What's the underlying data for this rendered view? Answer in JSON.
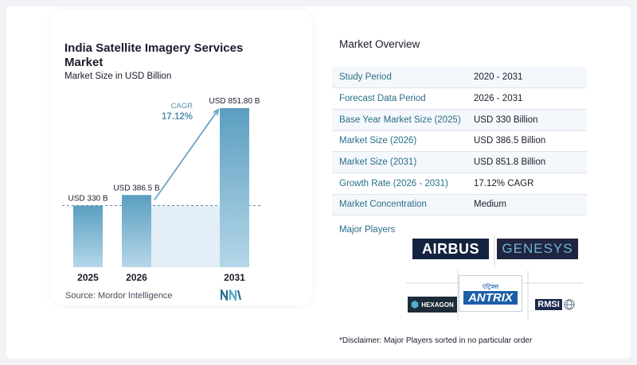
{
  "title": "India Satellite Imagery Services Market",
  "subtitle": "Market Size in USD Billion",
  "source": "Source:  Mordor Intelligence",
  "chart_data": {
    "type": "bar",
    "categories": [
      "2025",
      "2026",
      "2031"
    ],
    "values": [
      330,
      386.5,
      851.8
    ],
    "data_labels": [
      "USD 330 B",
      "USD 386.5 B",
      "USD 851.80 B"
    ],
    "annotation": {
      "label": "CAGR",
      "value": "17.12%"
    },
    "colors": {
      "bar_top": "#5b9ec1",
      "bar_bottom": "#b5d7e8",
      "shade": "#e3eef6",
      "dash": "#5b8fa8",
      "arrow": "#6aa3c4"
    }
  },
  "overview": {
    "heading": "Market Overview",
    "rows": [
      {
        "key": "Study Period",
        "value": "2020 - 2031"
      },
      {
        "key": "Forecast Data Period",
        "value": "2026 - 2031"
      },
      {
        "key": "Base Year Market Size (2025)",
        "value": "USD 330 Billion"
      },
      {
        "key": "Market Size (2026)",
        "value": "USD 386.5 Billion"
      },
      {
        "key": "Market Size (2031)",
        "value": "USD 851.8 Billion"
      },
      {
        "key": "Growth Rate (2026 - 2031)",
        "value": "17.12% CAGR"
      },
      {
        "key": "Market Concentration",
        "value": "Medium"
      }
    ]
  },
  "players": {
    "label": "Major Players",
    "logos": [
      "AIRBUS",
      "GENESYS",
      "HEXAGON",
      "ANTRIX",
      "RMSI"
    ],
    "antrix_devanagari": "एंट्रिक्स"
  },
  "disclaimer": "*Disclaimer: Major Players sorted in no particular order"
}
